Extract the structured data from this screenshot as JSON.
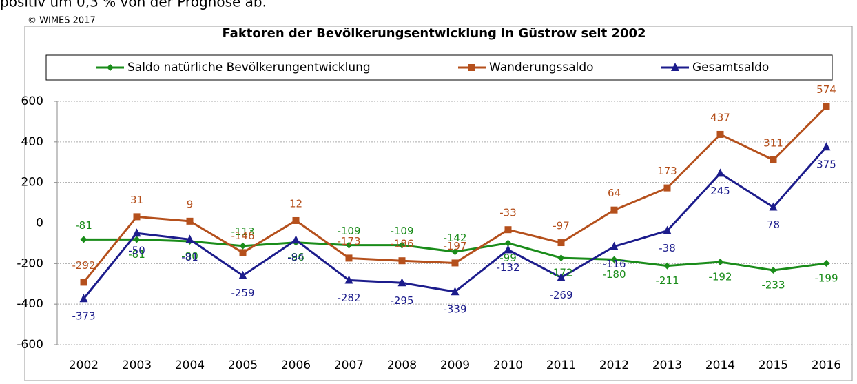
{
  "header_text": "positiv um 0,3 % von der Prognose ab.",
  "chart_data": {
    "type": "line",
    "copyright": "© WIMES 2017",
    "title": "Faktoren der Bevölkerungsentwicklung in Güstrow seit 2002",
    "categories": [
      "2002",
      "2003",
      "2004",
      "2005",
      "2006",
      "2007",
      "2008",
      "2009",
      "2010",
      "2011",
      "2012",
      "2013",
      "2014",
      "2015",
      "2016"
    ],
    "series": [
      {
        "name": "Saldo natürliche Bevölkerungentwicklung",
        "color": "#1a8c1a",
        "marker": "diamond",
        "values": [
          -81,
          -81,
          -90,
          -113,
          -96,
          -109,
          -109,
          -142,
          -99,
          -172,
          -180,
          -211,
          -192,
          -233,
          -199
        ]
      },
      {
        "name": "Wanderungssaldo",
        "color": "#b5501c",
        "marker": "square",
        "values": [
          -292,
          31,
          9,
          -146,
          12,
          -173,
          -186,
          -197,
          -33,
          -97,
          64,
          173,
          437,
          311,
          574
        ]
      },
      {
        "name": "Gesamtsaldo",
        "color": "#1c1c8c",
        "marker": "triangle",
        "values": [
          -373,
          -50,
          -81,
          -259,
          -84,
          -282,
          -295,
          -339,
          -132,
          -269,
          -116,
          -38,
          245,
          78,
          375
        ]
      }
    ],
    "ylim": [
      -600,
      600
    ],
    "yticks": [
      -600,
      -400,
      -200,
      0,
      200,
      400,
      600
    ],
    "grid": true
  }
}
